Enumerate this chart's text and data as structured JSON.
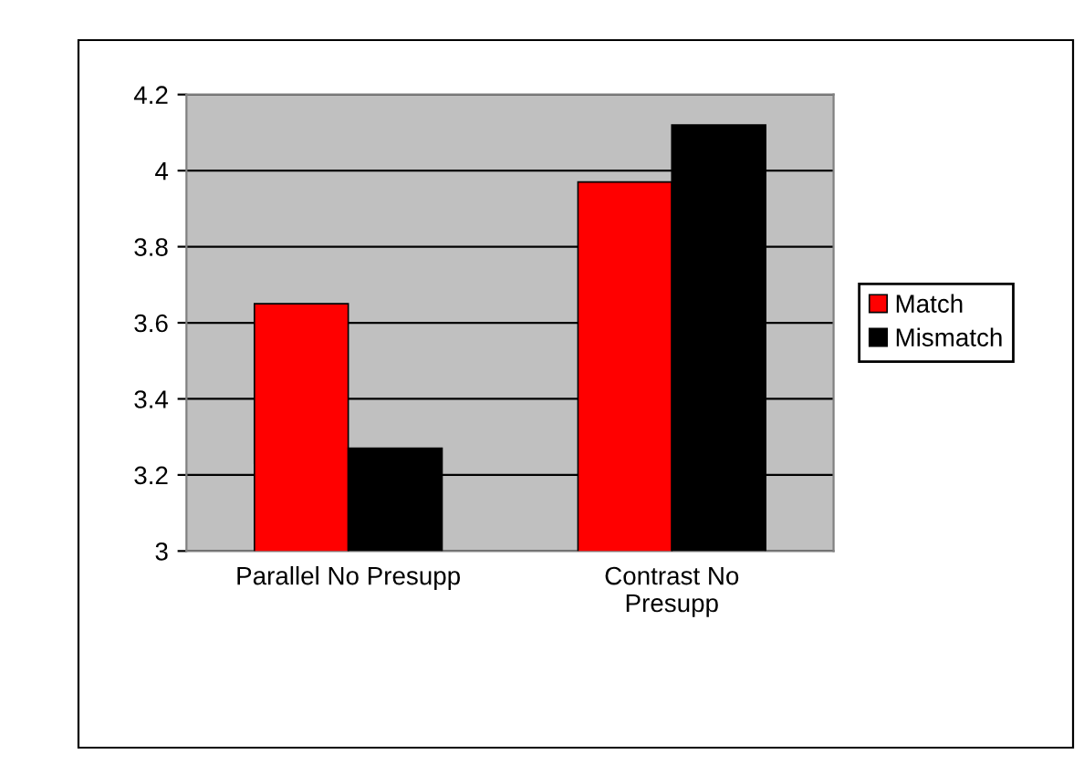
{
  "chart_data": {
    "type": "bar",
    "categories": [
      "Parallel No Presupp",
      "Contrast No\nPresupp"
    ],
    "series": [
      {
        "name": "Match",
        "color": "#ff0000",
        "values": [
          3.65,
          3.97
        ]
      },
      {
        "name": "Mismatch",
        "color": "#000000",
        "values": [
          3.27,
          4.12
        ]
      }
    ],
    "ylim": [
      3,
      4.2
    ],
    "yticks": [
      3,
      3.2,
      3.4,
      3.6,
      3.8,
      {
        "value": 4,
        "label": "4"
      },
      4.2
    ],
    "grid": "y",
    "legend": "right"
  }
}
